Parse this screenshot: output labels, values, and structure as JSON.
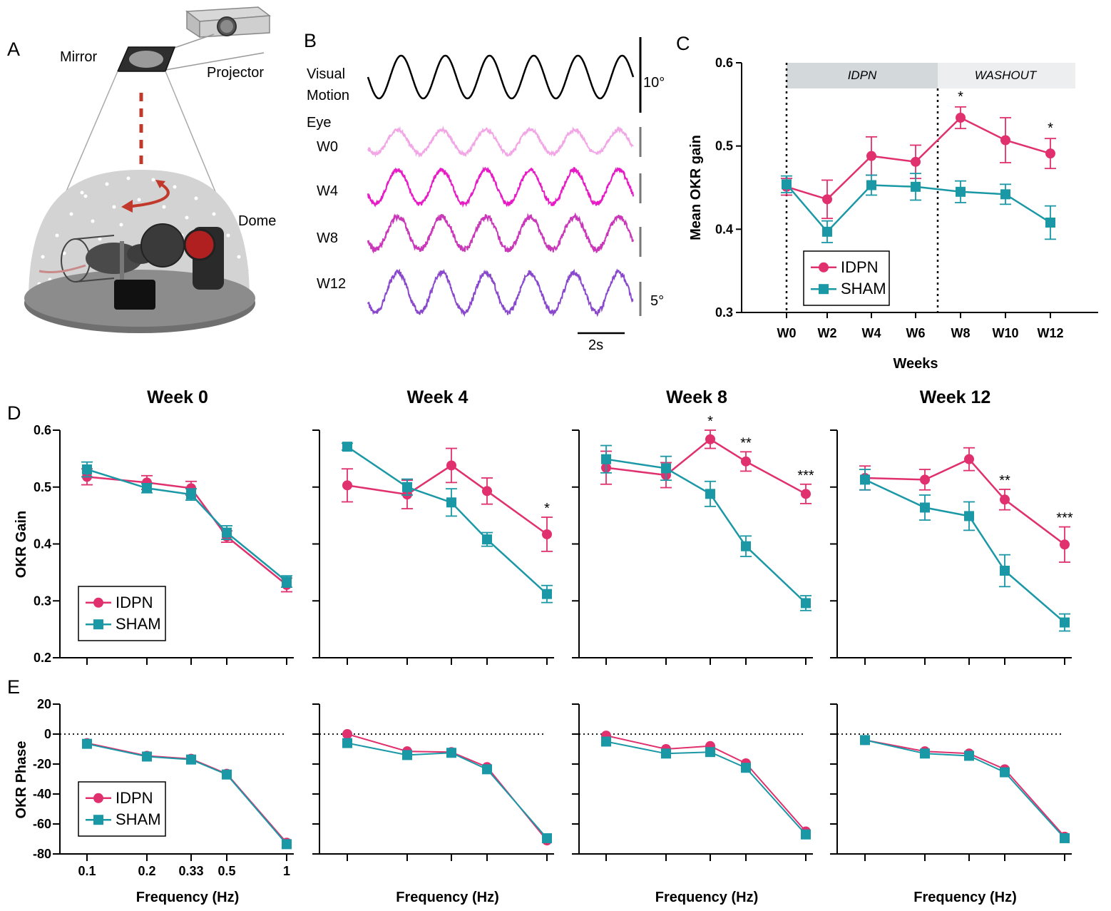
{
  "panel_letters": [
    "A",
    "B",
    "C",
    "D",
    "E"
  ],
  "colors": {
    "idpn": "#e0306e",
    "sham": "#1a98a6",
    "w0": "#f2a6e6",
    "w4": "#e81ac6",
    "w8": "#c838b8",
    "w12": "#8a48cc",
    "idpn_band": "#d3d8db",
    "washout_band": "#eceeef"
  },
  "panel_a": {
    "labels": {
      "mirror": "Mirror",
      "projector": "Projector",
      "dome": "Dome"
    },
    "icons": [
      "projector-icon",
      "mirror-icon",
      "dome-icon",
      "mouse-icon",
      "rotation-arrow-icon"
    ]
  },
  "panel_b": {
    "labels": {
      "visual_line1": "Visual",
      "visual_line2": "Motion",
      "eye": "Eye",
      "w0": "W0",
      "w4": "W4",
      "w8": "W8",
      "w12": "W12",
      "scale_motion": "10°",
      "scale_eye": "5°",
      "scale_time": "2s"
    },
    "cycles": 6
  },
  "chart_data": [
    {
      "id": "C",
      "type": "line",
      "title": "",
      "xlabel": "Weeks",
      "ylabel": "Mean OKR  gain",
      "categories": [
        "W0",
        "W2",
        "W4",
        "W6",
        "W8",
        "W10",
        "W12"
      ],
      "ylim": [
        0.3,
        0.6
      ],
      "yticks": [
        "0.3",
        "0.4",
        "0.5",
        "0.6"
      ],
      "bands": [
        {
          "label": "IDPN",
          "from": "W0",
          "to": "W6"
        },
        {
          "label": "WASHOUT",
          "from": "W6",
          "to": "W12"
        }
      ],
      "series": [
        {
          "name": "IDPN",
          "values": [
            0.451,
            0.436,
            0.488,
            0.481,
            0.534,
            0.507,
            0.491
          ],
          "errors": [
            0.01,
            0.023,
            0.023,
            0.02,
            0.013,
            0.027,
            0.018
          ]
        },
        {
          "name": "SHAM",
          "values": [
            0.454,
            0.397,
            0.453,
            0.451,
            0.445,
            0.442,
            0.408
          ],
          "errors": [
            0.01,
            0.013,
            0.012,
            0.016,
            0.013,
            0.012,
            0.02
          ]
        }
      ],
      "annotations": [
        {
          "category": "W8",
          "text": "*"
        },
        {
          "category": "W12",
          "text": "*"
        }
      ],
      "legend": "bottom-left"
    },
    {
      "id": "D-week0",
      "type": "line",
      "title": "Week 0",
      "ylabel": "OKR Gain",
      "x": [
        0.1,
        0.2,
        0.33,
        0.5,
        1
      ],
      "ylim": [
        0.2,
        0.6
      ],
      "yticks": [
        "0.2",
        "0.3",
        "0.4",
        "0.5",
        "0.6"
      ],
      "series": [
        {
          "name": "IDPN",
          "values": [
            0.518,
            0.508,
            0.498,
            0.413,
            0.328
          ],
          "errors": [
            0.014,
            0.012,
            0.012,
            0.01,
            0.012
          ]
        },
        {
          "name": "SHAM",
          "values": [
            0.531,
            0.498,
            0.487,
            0.42,
            0.334
          ],
          "errors": [
            0.013,
            0.008,
            0.01,
            0.012,
            0.01
          ]
        }
      ],
      "legend": "bottom-left"
    },
    {
      "id": "D-week4",
      "type": "line",
      "title": "Week 4",
      "x": [
        0.1,
        0.2,
        0.33,
        0.5,
        1
      ],
      "ylim": [
        0.2,
        0.6
      ],
      "series": [
        {
          "name": "IDPN",
          "values": [
            0.503,
            0.487,
            0.538,
            0.493,
            0.417
          ],
          "errors": [
            0.029,
            0.025,
            0.03,
            0.023,
            0.03
          ]
        },
        {
          "name": "SHAM",
          "values": [
            0.571,
            0.5,
            0.473,
            0.408,
            0.312
          ],
          "errors": [
            0.006,
            0.014,
            0.024,
            0.012,
            0.015
          ]
        }
      ],
      "annotations": [
        {
          "x": 1,
          "text": "*"
        }
      ]
    },
    {
      "id": "D-week8",
      "type": "line",
      "title": "Week 8",
      "x": [
        0.1,
        0.2,
        0.33,
        0.5,
        1
      ],
      "ylim": [
        0.2,
        0.6
      ],
      "series": [
        {
          "name": "IDPN",
          "values": [
            0.534,
            0.521,
            0.584,
            0.545,
            0.488
          ],
          "errors": [
            0.029,
            0.022,
            0.016,
            0.017,
            0.017
          ]
        },
        {
          "name": "SHAM",
          "values": [
            0.549,
            0.533,
            0.488,
            0.396,
            0.296
          ],
          "errors": [
            0.024,
            0.021,
            0.022,
            0.018,
            0.013
          ]
        }
      ],
      "annotations": [
        {
          "x": 0.33,
          "text": "*"
        },
        {
          "x": 0.5,
          "text": "**"
        },
        {
          "x": 1,
          "text": "***"
        }
      ]
    },
    {
      "id": "D-week12",
      "type": "line",
      "title": "Week 12",
      "x": [
        0.1,
        0.2,
        0.33,
        0.5,
        1
      ],
      "ylim": [
        0.2,
        0.6
      ],
      "series": [
        {
          "name": "IDPN",
          "values": [
            0.516,
            0.513,
            0.549,
            0.478,
            0.399
          ],
          "errors": [
            0.021,
            0.018,
            0.02,
            0.018,
            0.031
          ]
        },
        {
          "name": "SHAM",
          "values": [
            0.513,
            0.464,
            0.449,
            0.353,
            0.262
          ],
          "errors": [
            0.018,
            0.022,
            0.025,
            0.028,
            0.015
          ]
        }
      ],
      "annotations": [
        {
          "x": 0.5,
          "text": "**"
        },
        {
          "x": 1,
          "text": "***"
        }
      ]
    },
    {
      "id": "E-week0",
      "type": "line",
      "ylabel": "OKR Phase",
      "xlabel": "Frequency (Hz)",
      "x": [
        0.1,
        0.2,
        0.33,
        0.5,
        1
      ],
      "xticklabels": [
        "0.1",
        "0.2",
        "0.33",
        "0.5",
        "1"
      ],
      "ylim": [
        -80,
        20
      ],
      "yticks": [
        "20",
        "0",
        "-20",
        "-40",
        "-60",
        "-80"
      ],
      "reference_line": 0,
      "series": [
        {
          "name": "IDPN",
          "values": [
            -6,
            -14.5,
            -16.5,
            -26.5,
            -72.5
          ]
        },
        {
          "name": "SHAM",
          "values": [
            -6.5,
            -15,
            -17,
            -27,
            -73.5
          ]
        }
      ],
      "legend": "bottom-left"
    },
    {
      "id": "E-week4",
      "type": "line",
      "xlabel": "Frequency (Hz)",
      "x": [
        0.1,
        0.2,
        0.33,
        0.5,
        1
      ],
      "ylim": [
        -80,
        20
      ],
      "reference_line": 0,
      "series": [
        {
          "name": "IDPN",
          "values": [
            0,
            -11.5,
            -12,
            -22,
            -71
          ]
        },
        {
          "name": "SHAM",
          "values": [
            -6,
            -14,
            -12.5,
            -23.5,
            -69.5
          ]
        }
      ]
    },
    {
      "id": "E-week8",
      "type": "line",
      "xlabel": "Frequency (Hz)",
      "x": [
        0.1,
        0.2,
        0.33,
        0.5,
        1
      ],
      "ylim": [
        -80,
        20
      ],
      "reference_line": 0,
      "series": [
        {
          "name": "IDPN",
          "values": [
            -1,
            -10,
            -8,
            -19.5,
            -65
          ]
        },
        {
          "name": "SHAM",
          "values": [
            -5,
            -13,
            -12,
            -22.5,
            -67
          ]
        }
      ]
    },
    {
      "id": "E-week12",
      "type": "line",
      "xlabel": "Frequency (Hz)",
      "x": [
        0.1,
        0.2,
        0.33,
        0.5,
        1
      ],
      "ylim": [
        -80,
        20
      ],
      "reference_line": 0,
      "series": [
        {
          "name": "IDPN",
          "values": [
            -4,
            -11.5,
            -13,
            -23.5,
            -68.5
          ]
        },
        {
          "name": "SHAM",
          "values": [
            -4,
            -13,
            -14.5,
            -25.5,
            -69.5
          ]
        }
      ]
    }
  ]
}
